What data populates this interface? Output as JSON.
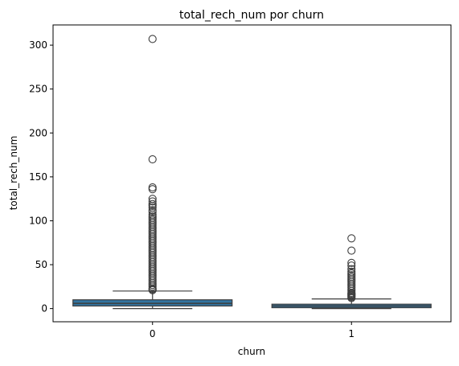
{
  "chart_data": {
    "type": "box",
    "title": "total_rech_num por churn",
    "xlabel": "churn",
    "ylabel": "total_rech_num",
    "categories": [
      "0",
      "1"
    ],
    "ylim": [
      -15,
      323
    ],
    "yticks": [
      0,
      50,
      100,
      150,
      200,
      250,
      300
    ],
    "grid": false,
    "legend": "none",
    "box_color": "#3274a1",
    "boxes": [
      {
        "category": "0",
        "q1": 3,
        "median": 6,
        "q3": 10,
        "whisker_low": 0,
        "whisker_high": 20,
        "outliers": [
          307,
          170,
          138,
          136,
          125,
          122,
          119,
          117,
          115,
          112,
          110,
          107,
          105,
          103,
          101,
          99,
          97,
          95,
          93,
          91,
          89,
          87,
          85,
          83,
          81,
          79,
          77,
          75,
          73,
          71,
          69,
          67,
          65,
          63,
          61,
          59,
          57,
          55,
          53,
          51,
          49,
          47,
          45,
          43,
          41,
          39,
          37,
          35,
          33,
          31,
          29,
          27,
          25,
          23,
          22,
          21
        ]
      },
      {
        "category": "1",
        "q1": 1,
        "median": 3,
        "q3": 5,
        "whisker_low": 0,
        "whisker_high": 11,
        "outliers": [
          80,
          66,
          52,
          49,
          45,
          42,
          40,
          38,
          36,
          34,
          32,
          30,
          28,
          26,
          24,
          22,
          20,
          18,
          17,
          16,
          15,
          14,
          13,
          12
        ]
      }
    ]
  }
}
